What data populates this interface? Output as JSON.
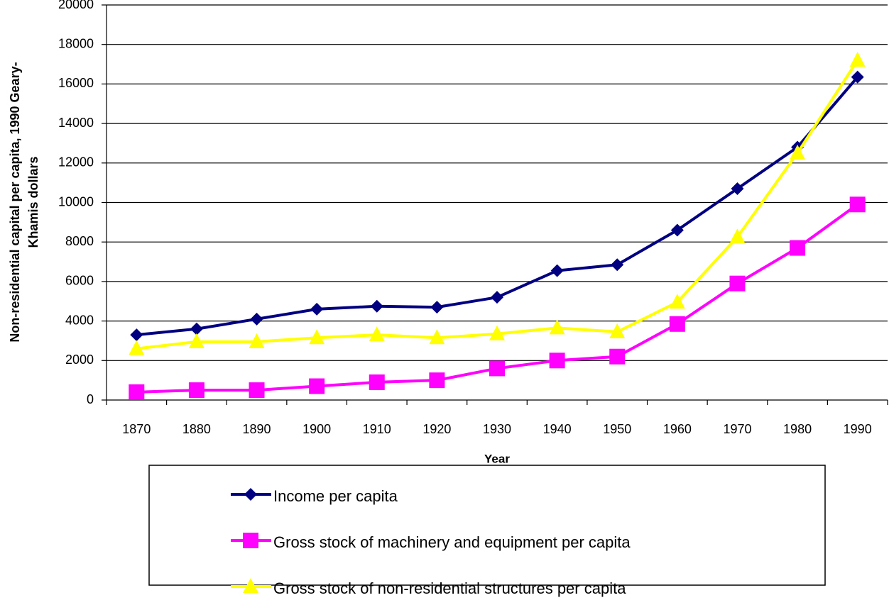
{
  "chart_data": {
    "type": "line",
    "xlabel": "Year",
    "ylabel": [
      "Non-residential capital per capita, 1990 Geary-",
      "Khamis dollars"
    ],
    "categories": [
      "1870",
      "1880",
      "1890",
      "1900",
      "1910",
      "1920",
      "1930",
      "1940",
      "1950",
      "1960",
      "1970",
      "1980",
      "1990"
    ],
    "series": [
      {
        "name": "Income per capita",
        "color": "#000080",
        "marker": "diamond",
        "values": [
          3300,
          3600,
          4100,
          4600,
          4750,
          4700,
          5200,
          6550,
          6850,
          8600,
          10700,
          12800,
          16350
        ]
      },
      {
        "name": "Gross stock of machinery and equipment per capita",
        "color": "#ff00ff",
        "marker": "square",
        "values": [
          400,
          500,
          500,
          700,
          900,
          1000,
          1600,
          2000,
          2200,
          3850,
          5900,
          7700,
          9900
        ]
      },
      {
        "name": "Gross stock of non-residential structures per capita",
        "color": "#ffff00",
        "marker": "triangle",
        "values": [
          2600,
          2950,
          2950,
          3150,
          3300,
          3150,
          3350,
          3650,
          3450,
          4950,
          8250,
          12500,
          17200
        ]
      }
    ],
    "ylim": [
      0,
      20000
    ],
    "yticks": [
      0,
      2000,
      4000,
      6000,
      8000,
      10000,
      12000,
      14000,
      16000,
      18000,
      20000
    ],
    "grid": true,
    "legend": "bottom"
  }
}
